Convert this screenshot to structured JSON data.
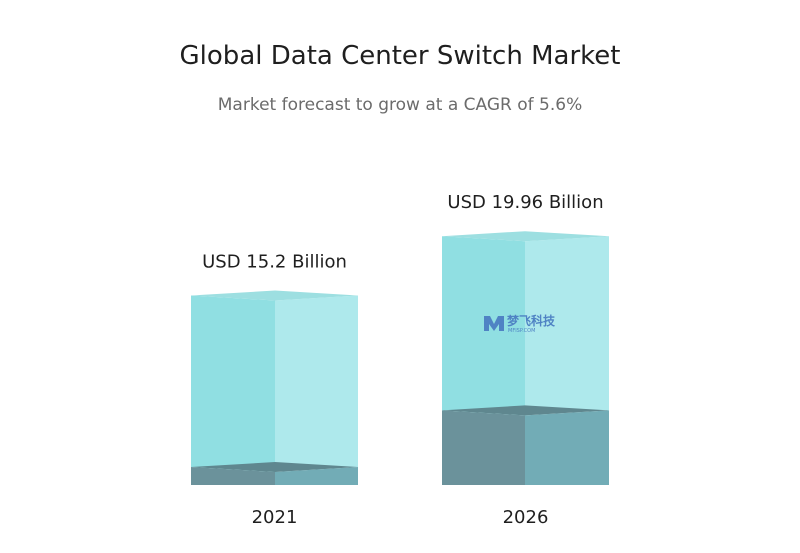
{
  "chart_data": {
    "type": "bar",
    "title": "Global Data Center Switch Market",
    "subtitle": "Market forecast to grow at a CAGR of 5.6%",
    "categories": [
      "2021",
      "2026"
    ],
    "values": [
      15.2,
      19.96
    ],
    "value_labels": [
      "USD 15.2 Billion",
      "USD 19.96 Billion"
    ],
    "unit": "USD Billion",
    "ylim": [
      0,
      21.5
    ],
    "colors": {
      "front": "#90dfe2",
      "side": "#aee9ec",
      "top": "#9ddfe1",
      "base_front": "#6b929b",
      "base_side": "#72acb6",
      "base_top": "#5f878f"
    }
  },
  "watermark": {
    "label": "梦飞科技",
    "sublabel": "MFISP.COM"
  }
}
